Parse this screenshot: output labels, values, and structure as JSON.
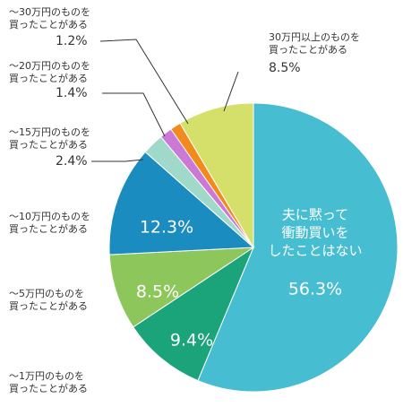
{
  "chart_data": {
    "type": "pie",
    "categories": [
      [
        "夫に黙って",
        "衝動買いを",
        "したことはない"
      ],
      [
        "〜1万円のものを",
        "買ったことがある"
      ],
      [
        "〜5万円のものを",
        "買ったことがある"
      ],
      [
        "〜10万円のものを",
        "買ったことがある"
      ],
      [
        "〜15万円のものを",
        "買ったことがある"
      ],
      [
        "〜20万円のものを",
        "買ったことがある"
      ],
      [
        "〜30万円のものを",
        "買ったことがある"
      ],
      [
        "30万円以上のものを",
        "買ったことがある"
      ]
    ],
    "values": [
      56.3,
      9.4,
      8.5,
      12.3,
      2.4,
      1.4,
      1.2,
      8.5
    ],
    "value_labels": [
      "56.3%",
      "9.4%",
      "8.5%",
      "12.3%",
      "2.4%",
      "1.4%",
      "1.2%",
      "8.5%"
    ],
    "colors": [
      "#46bdd0",
      "#1ba37a",
      "#8dc65b",
      "#1a8cc0",
      "#a0d9c9",
      "#cc78d6",
      "#f28a1e",
      "#d5e06a"
    ]
  }
}
